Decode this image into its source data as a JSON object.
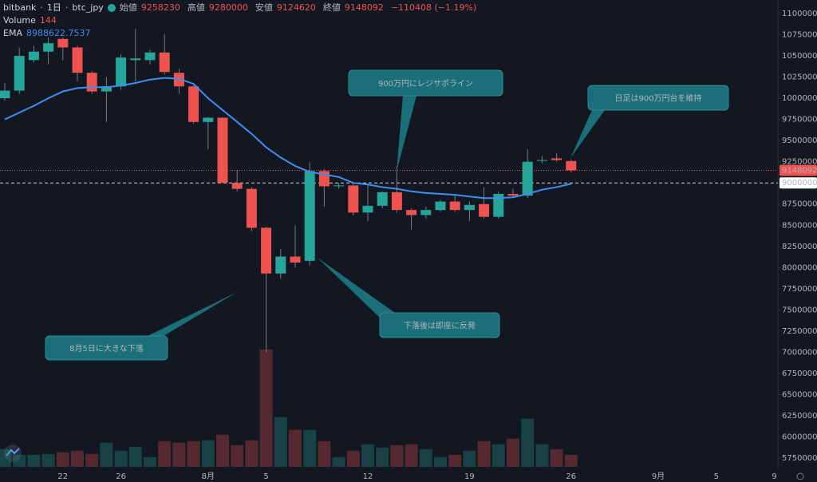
{
  "header": {
    "exchange": "bitbank",
    "interval": "1日",
    "symbol": "btc_jpy",
    "open_label": "始値",
    "high_label": "高値",
    "low_label": "安値",
    "close_label": "終値",
    "change": "−110408 (−1.19%)",
    "volume_label": "Volume",
    "ema_label": "EMA"
  },
  "chart_data": {
    "type": "candlestick",
    "categories": [
      null,
      null,
      null,
      null,
      "22",
      null,
      null,
      null,
      "26",
      null,
      null,
      null,
      null,
      null,
      "8月",
      null,
      null,
      null,
      "5",
      null,
      null,
      null,
      null,
      null,
      null,
      "12",
      null,
      null,
      null,
      null,
      null,
      null,
      "19",
      null,
      null,
      null,
      null,
      null,
      null,
      "26",
      null,
      null,
      null,
      null,
      null,
      "9月",
      null,
      null,
      null,
      "5",
      null,
      null,
      null,
      "9"
    ],
    "open": [
      10000000,
      10090000,
      10450000,
      10550000,
      10700000,
      10600000,
      10300000,
      10080000,
      10140000,
      10450000,
      10450000,
      10540000,
      10300000,
      10140000,
      9720000,
      9770000,
      9000000,
      8930000,
      8470000,
      7930000,
      8130000,
      8080000,
      9140000,
      8960000,
      8970000,
      8650000,
      8730000,
      8890000,
      8680000,
      8620000,
      8680000,
      8780000,
      8680000,
      8750000,
      8600000,
      8870000,
      8850000,
      9260000,
      9290000,
      9258230,
      null,
      null,
      null,
      null,
      null,
      null,
      null,
      null,
      null,
      null,
      null,
      null,
      null,
      null
    ],
    "high": [
      10180000,
      10600000,
      10620000,
      10720000,
      10720000,
      10620000,
      10320000,
      10250000,
      10520000,
      10820000,
      10570000,
      10760000,
      10350000,
      10150000,
      9780000,
      9780000,
      9150000,
      8950000,
      8480000,
      8220000,
      8500000,
      9250000,
      9160000,
      9000000,
      9000000,
      8970000,
      8900000,
      9200000,
      8700000,
      8720000,
      8800000,
      8850000,
      8780000,
      8950000,
      8900000,
      8930000,
      9400000,
      9320000,
      9350000,
      9280000,
      null,
      null,
      null,
      null,
      null,
      null,
      null,
      null,
      null,
      null,
      null,
      null,
      null,
      null
    ],
    "low": [
      9970000,
      10050000,
      10420000,
      10400000,
      10450000,
      10200000,
      10050000,
      9720000,
      10100000,
      10200000,
      10400000,
      10280000,
      10050000,
      9700000,
      9400000,
      9000000,
      8900000,
      8430000,
      7000000,
      7870000,
      8000000,
      8020000,
      8720000,
      8930000,
      8620000,
      8550000,
      8700000,
      8650000,
      8450000,
      8580000,
      8660000,
      8660000,
      8550000,
      8580000,
      8580000,
      8830000,
      8820000,
      9230000,
      9250000,
      9124620,
      null,
      null,
      null,
      null,
      null,
      null,
      null,
      null,
      null,
      null,
      null,
      null,
      null,
      null
    ],
    "close": [
      10090000,
      10500000,
      10550000,
      10650000,
      10600000,
      10300000,
      10080000,
      10140000,
      10480000,
      10470000,
      10540000,
      10310000,
      10140000,
      9720000,
      9770000,
      9000000,
      8930000,
      8470000,
      7930000,
      8130000,
      8060000,
      9140000,
      8960000,
      8970000,
      8650000,
      8730000,
      8890000,
      8680000,
      8620000,
      8680000,
      8780000,
      8680000,
      8740000,
      8600000,
      8870000,
      8850000,
      9250000,
      9270000,
      9270000,
      9148092,
      null,
      null,
      null,
      null,
      null,
      null,
      null,
      null,
      null,
      null,
      null,
      null,
      null,
      null
    ],
    "volume": [
      211,
      144,
      144,
      154,
      173,
      192,
      154,
      288,
      192,
      240,
      115,
      307,
      288,
      307,
      317,
      384,
      259,
      317,
      1402,
      595,
      442,
      442,
      307,
      115,
      192,
      269,
      230,
      259,
      269,
      211,
      115,
      144,
      192,
      307,
      269,
      336,
      576,
      269,
      211,
      144,
      null,
      null,
      null,
      null,
      null,
      null,
      null,
      null,
      null,
      null,
      null,
      null,
      null,
      null
    ],
    "ema": [
      9750000,
      9830000,
      9910000,
      10000000,
      10080000,
      10120000,
      10130000,
      10130000,
      10150000,
      10180000,
      10220000,
      10240000,
      10230000,
      10170000,
      10000000,
      9860000,
      9720000,
      9580000,
      9420000,
      9300000,
      9200000,
      9130000,
      9100000,
      9070000,
      9000000,
      8980000,
      8950000,
      8930000,
      8900000,
      8880000,
      8870000,
      8860000,
      8840000,
      8820000,
      8820000,
      8830000,
      8870000,
      8920000,
      8950000,
      8988622.7537,
      null,
      null,
      null,
      null,
      null,
      null,
      null,
      null,
      null,
      null,
      null,
      null,
      null,
      null
    ],
    "up_color": "#26a69a",
    "down_color": "#ef5350",
    "ema_color": "#3d8ff0",
    "ylim": [
      5600000,
      11160000
    ],
    "yticks": [
      5750000,
      6000000,
      6250000,
      6500000,
      6750000,
      7000000,
      7250000,
      7500000,
      7750000,
      8000000,
      8250000,
      8500000,
      8750000,
      9000000,
      9250000,
      9500000,
      9750000,
      10000000,
      10250000,
      10500000,
      10750000,
      11000000
    ],
    "grid": false,
    "hline": 9000000,
    "annotations": [
      {
        "text": "900万円にレジサポライン"
      },
      {
        "text": "日足は900万円台を維持"
      },
      {
        "text": "下落後は即座に反発"
      },
      {
        "text": "8月5日に大きな下落"
      }
    ]
  }
}
